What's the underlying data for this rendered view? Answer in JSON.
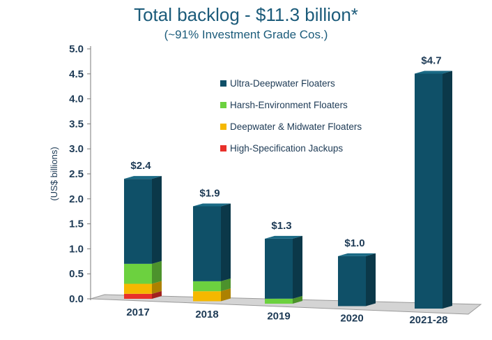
{
  "title": "Total backlog - $11.3 billion*",
  "subtitle": "(~91% Investment Grade Cos.)",
  "chart_data": {
    "type": "bar",
    "stacked": true,
    "categories": [
      "2017",
      "2018",
      "2019",
      "2020",
      "2021-28"
    ],
    "series": [
      {
        "name": "High-Specification Jackups",
        "color": "#e8302a",
        "values": [
          0.1,
          0.0,
          0.0,
          0.0,
          0.0
        ]
      },
      {
        "name": "Deepwater & Midwater Floaters",
        "color": "#f5b800",
        "values": [
          0.2,
          0.2,
          0.0,
          0.0,
          0.0
        ]
      },
      {
        "name": "Harsh-Environment Floaters",
        "color": "#6cd13f",
        "values": [
          0.4,
          0.2,
          0.1,
          0.0,
          0.0
        ]
      },
      {
        "name": "Ultra-Deepwater Floaters",
        "color": "#0f5068",
        "values": [
          1.7,
          1.5,
          1.2,
          1.0,
          4.7
        ]
      }
    ],
    "data_labels": [
      "$2.4",
      "$1.9",
      "$1.3",
      "$1.0",
      "$4.7"
    ],
    "ylabel": "(US$ billions)",
    "ylim": [
      0,
      5.0
    ],
    "yticks": [
      "0.0",
      "0.5",
      "1.0",
      "1.5",
      "2.0",
      "2.5",
      "3.0",
      "3.5",
      "4.0",
      "4.5",
      "5.0"
    ],
    "legend_order": [
      "Ultra-Deepwater Floaters",
      "Harsh-Environment Floaters",
      "Deepwater & Midwater Floaters",
      "High-Specification Jackups"
    ],
    "legend_position": "top-center",
    "grid": false
  }
}
